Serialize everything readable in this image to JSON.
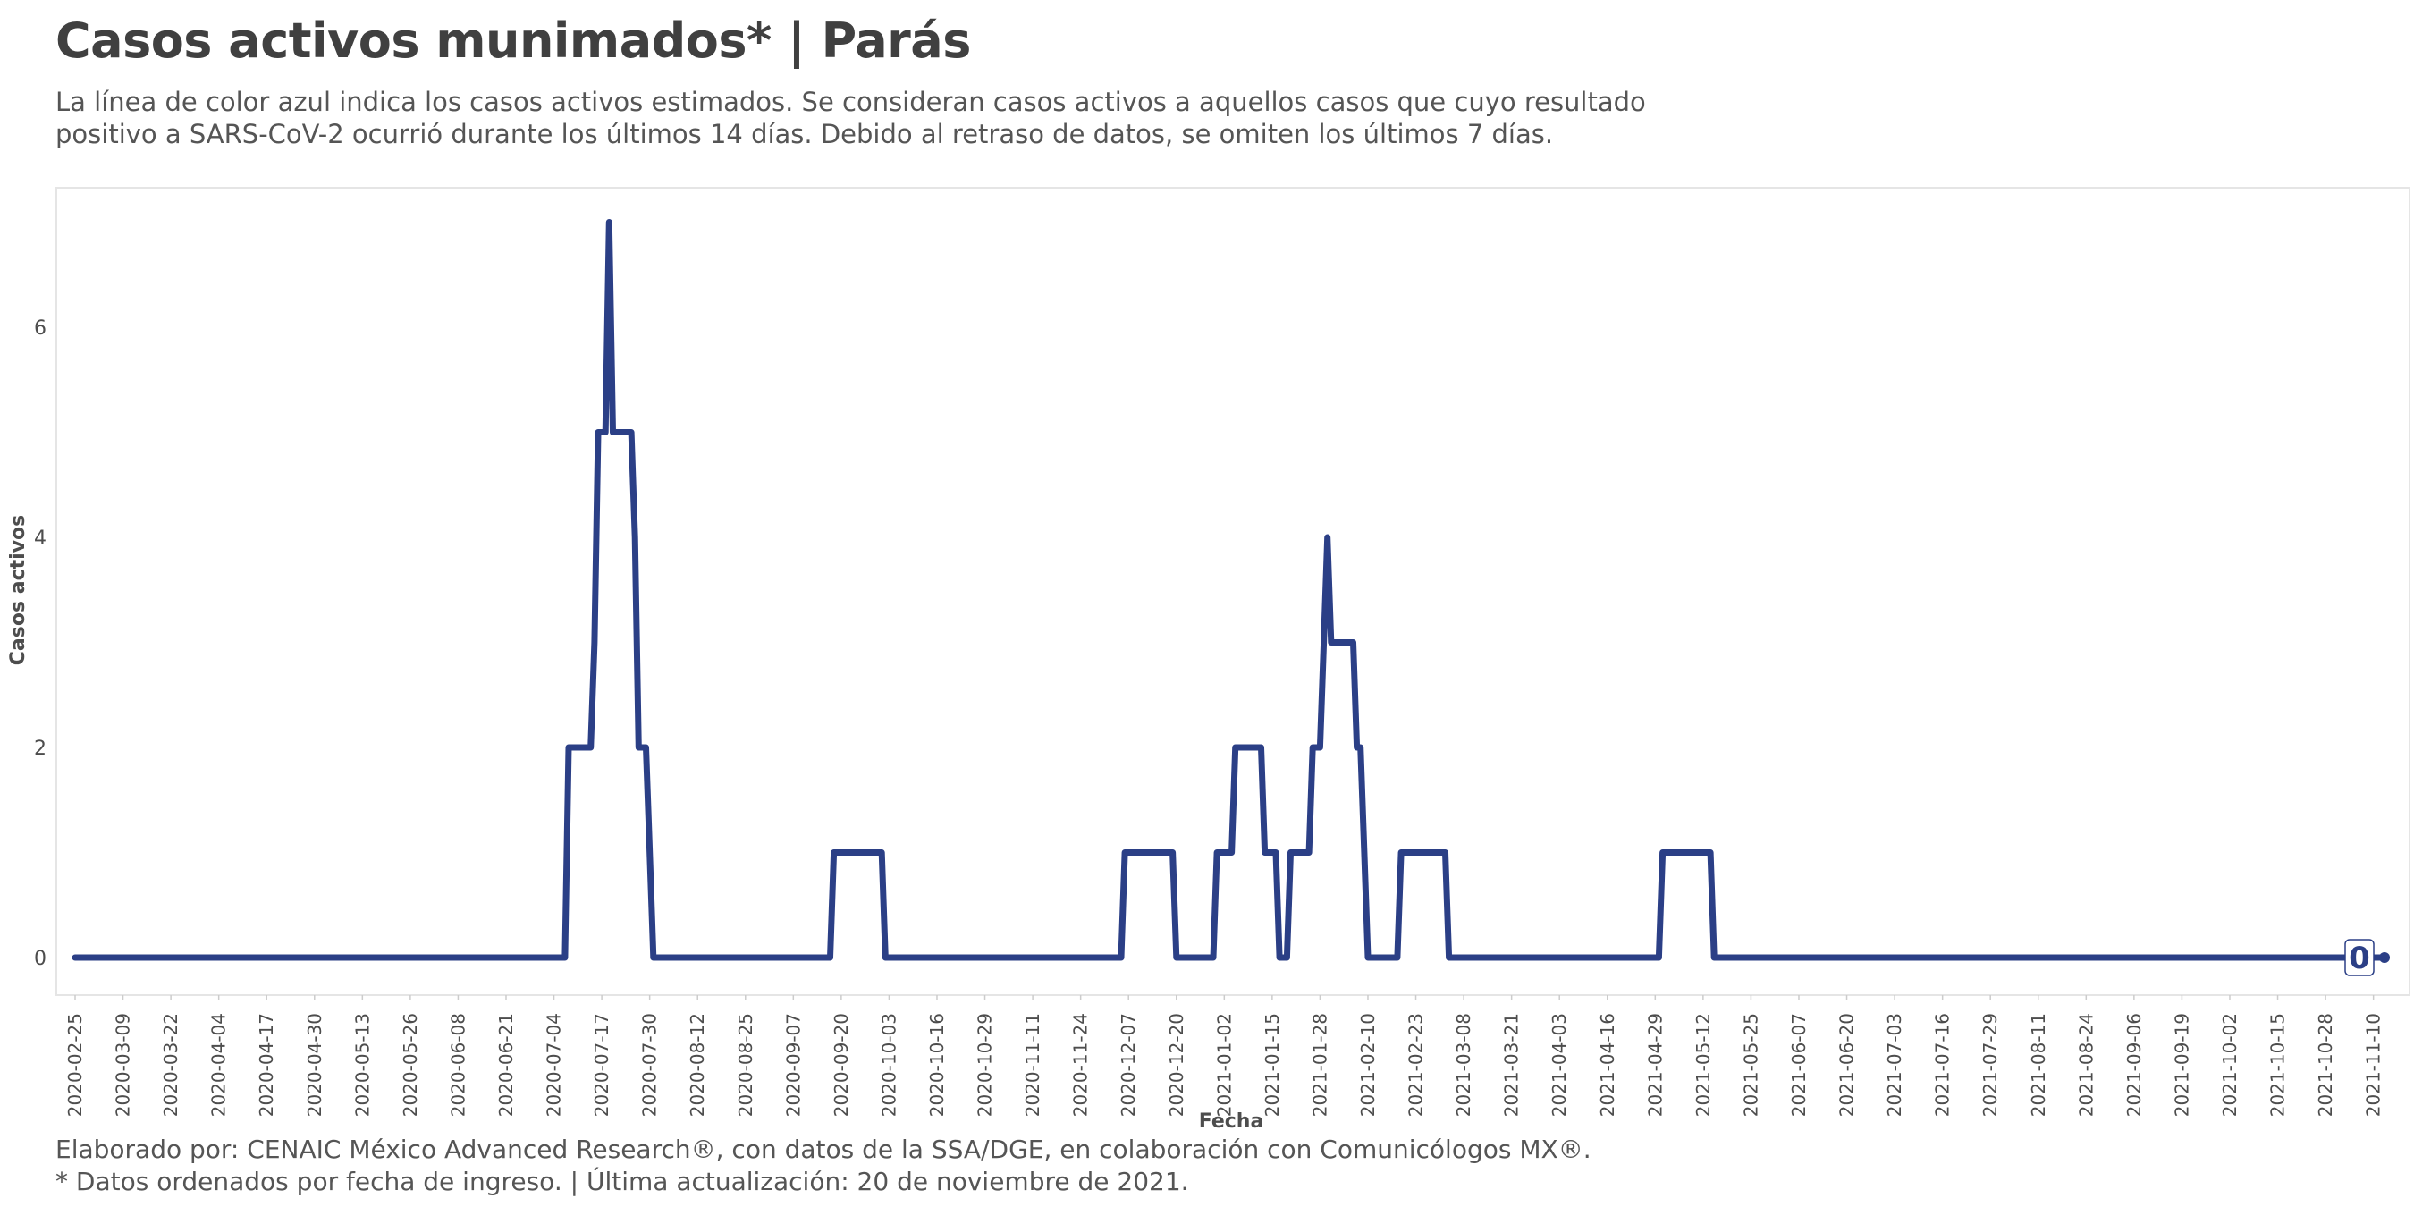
{
  "header": {
    "title": "Casos activos munimados* | Parás",
    "subtitle": "La línea de color azul indica los casos activos estimados. Se consideran casos activos a aquellos casos que cuyo resultado positivo a SARS-CoV-2 ocurrió durante los últimos 14 días. Debido al retraso de datos, se omiten los últimos 7 días."
  },
  "caption": {
    "line1": "Elaborado por: CENAIC México Advanced Research®, con datos de la SSA/DGE, en colaboración con Comunicólogos MX®.",
    "line2": "* Datos ordenados por fecha de ingreso. | Última actualización: 20 de noviembre de 2021."
  },
  "colors": {
    "line": "#2b3f86",
    "panel_border": "#e5e5e5",
    "text": "#4d4d4d"
  },
  "chart_data": {
    "type": "line",
    "title": "Casos activos munimados* | Parás",
    "xlabel": "Fecha",
    "ylabel": "Casos activos",
    "ylim": [
      0,
      7
    ],
    "y_ticks": [
      0,
      2,
      4,
      6
    ],
    "x_range": [
      "2020-02-25",
      "2021-11-13"
    ],
    "x_tick_labels": [
      "2020-02-25",
      "2020-03-09",
      "2020-03-22",
      "2020-04-04",
      "2020-04-17",
      "2020-04-30",
      "2020-05-13",
      "2020-05-26",
      "2020-06-08",
      "2020-06-21",
      "2020-07-04",
      "2020-07-17",
      "2020-07-30",
      "2020-08-12",
      "2020-08-25",
      "2020-09-07",
      "2020-09-20",
      "2020-10-03",
      "2020-10-16",
      "2020-10-29",
      "2020-11-11",
      "2020-11-24",
      "2020-12-07",
      "2020-12-20",
      "2021-01-02",
      "2021-01-15",
      "2021-01-28",
      "2021-02-10",
      "2021-02-23",
      "2021-03-08",
      "2021-03-21",
      "2021-04-03",
      "2021-04-16",
      "2021-04-29",
      "2021-05-12",
      "2021-05-25",
      "2021-06-07",
      "2021-06-20",
      "2021-07-03",
      "2021-07-16",
      "2021-07-29",
      "2021-08-11",
      "2021-08-24",
      "2021-09-06",
      "2021-09-19",
      "2021-10-02",
      "2021-10-15",
      "2021-10-28",
      "2021-11-10"
    ],
    "grid": false,
    "end_label": "0",
    "series": [
      {
        "points": [
          [
            "2020-02-25",
            0
          ],
          [
            "2020-07-07",
            0
          ],
          [
            "2020-07-08",
            2
          ],
          [
            "2020-07-14",
            2
          ],
          [
            "2020-07-15",
            3
          ],
          [
            "2020-07-16",
            5
          ],
          [
            "2020-07-18",
            5
          ],
          [
            "2020-07-19",
            7
          ],
          [
            "2020-07-20",
            5
          ],
          [
            "2020-07-25",
            5
          ],
          [
            "2020-07-26",
            4
          ],
          [
            "2020-07-27",
            2
          ],
          [
            "2020-07-29",
            2
          ],
          [
            "2020-07-30",
            1
          ],
          [
            "2020-07-31",
            0
          ],
          [
            "2020-09-17",
            0
          ],
          [
            "2020-09-18",
            1
          ],
          [
            "2020-10-01",
            1
          ],
          [
            "2020-10-02",
            0
          ],
          [
            "2020-12-05",
            0
          ],
          [
            "2020-12-06",
            1
          ],
          [
            "2020-12-19",
            1
          ],
          [
            "2020-12-20",
            0
          ],
          [
            "2020-12-30",
            0
          ],
          [
            "2020-12-31",
            1
          ],
          [
            "2021-01-04",
            1
          ],
          [
            "2021-01-05",
            2
          ],
          [
            "2021-01-12",
            2
          ],
          [
            "2021-01-13",
            1
          ],
          [
            "2021-01-16",
            1
          ],
          [
            "2021-01-17",
            0
          ],
          [
            "2021-01-19",
            0
          ],
          [
            "2021-01-20",
            1
          ],
          [
            "2021-01-25",
            1
          ],
          [
            "2021-01-26",
            2
          ],
          [
            "2021-01-28",
            2
          ],
          [
            "2021-01-29",
            3
          ],
          [
            "2021-01-30",
            4
          ],
          [
            "2021-01-31",
            3
          ],
          [
            "2021-02-06",
            3
          ],
          [
            "2021-02-07",
            2
          ],
          [
            "2021-02-08",
            2
          ],
          [
            "2021-02-09",
            1
          ],
          [
            "2021-02-10",
            0
          ],
          [
            "2021-02-18",
            0
          ],
          [
            "2021-02-19",
            1
          ],
          [
            "2021-03-03",
            1
          ],
          [
            "2021-03-04",
            0
          ],
          [
            "2021-04-30",
            0
          ],
          [
            "2021-05-01",
            1
          ],
          [
            "2021-05-14",
            1
          ],
          [
            "2021-05-15",
            0
          ],
          [
            "2021-11-13",
            0
          ]
        ]
      }
    ]
  }
}
